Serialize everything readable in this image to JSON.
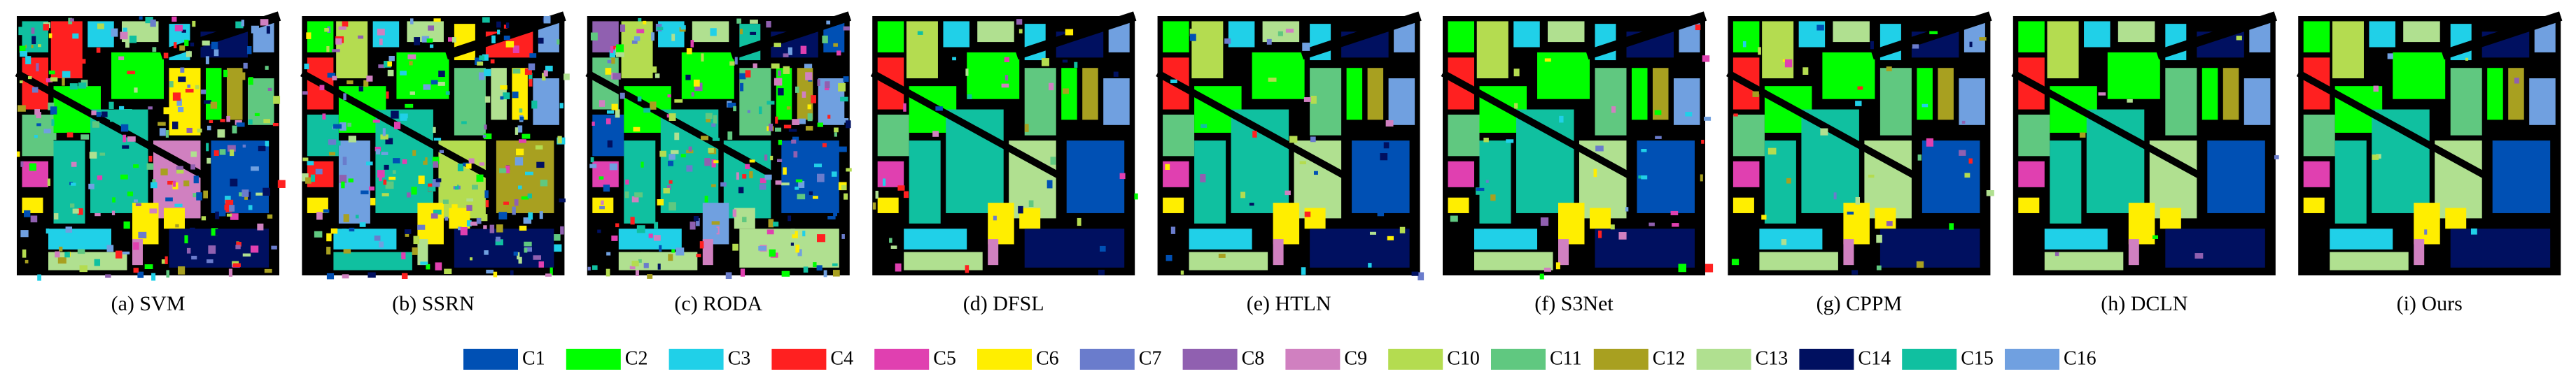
{
  "panels": [
    {
      "caption": "(a) SVM"
    },
    {
      "caption": "(b) SSRN"
    },
    {
      "caption": "(c) RODA"
    },
    {
      "caption": "(d) DFSL"
    },
    {
      "caption": "(e) HTLN"
    },
    {
      "caption": "(f) S3Net"
    },
    {
      "caption": "(g) CPPM"
    },
    {
      "caption": "(h) DCLN"
    },
    {
      "caption": "(i) Ours"
    }
  ],
  "legend": [
    {
      "label": "C1",
      "color": "#0050b4"
    },
    {
      "label": "C2",
      "color": "#00ff00"
    },
    {
      "label": "C3",
      "color": "#20d0e8"
    },
    {
      "label": "C4",
      "color": "#ff2020"
    },
    {
      "label": "C5",
      "color": "#e040b0"
    },
    {
      "label": "C6",
      "color": "#ffee00"
    },
    {
      "label": "C7",
      "color": "#6a7ccc"
    },
    {
      "label": "C8",
      "color": "#9060b0"
    },
    {
      "label": "C9",
      "color": "#d080c0"
    },
    {
      "label": "C10",
      "color": "#b4dc50"
    },
    {
      "label": "C11",
      "color": "#60c880"
    },
    {
      "label": "C12",
      "color": "#a8a020"
    },
    {
      "label": "C13",
      "color": "#b0e090"
    },
    {
      "label": "C14",
      "color": "#001060"
    },
    {
      "label": "C15",
      "color": "#10c0a0"
    },
    {
      "label": "C16",
      "color": "#70a0e0"
    }
  ]
}
